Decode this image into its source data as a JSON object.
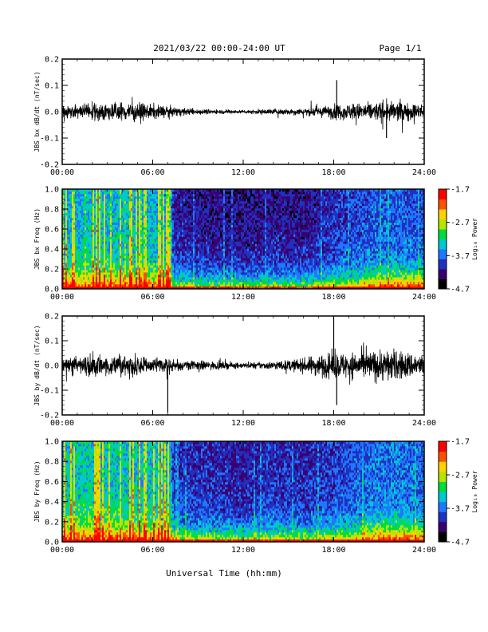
{
  "header": {
    "title": "2021/03/22  00:00-24:00 UT",
    "page": "Page 1/1"
  },
  "footer": {
    "xlabel": "Universal Time (hh:mm)"
  },
  "colors": {
    "trace": "#000000",
    "colormap": [
      "#000000",
      "#3a0070",
      "#2030c0",
      "#1e78ff",
      "#00c8d2",
      "#00dc3c",
      "#b4e600",
      "#ffd200",
      "#ff5000",
      "#ff0000"
    ]
  },
  "chart_data": [
    {
      "type": "line",
      "ylabel": "JBS bx dB/dt (nT/sec)",
      "x_range": [
        "00:00",
        "24:00"
      ],
      "x_ticks": [
        "00:00",
        "06:00",
        "12:00",
        "18:00",
        "24:00"
      ],
      "ylim": [
        -0.2,
        0.2
      ],
      "y_ticks": [
        "-0.2",
        "-0.1",
        "0.0",
        "0.1",
        "0.2"
      ],
      "envelope": {
        "hours": [
          0,
          2,
          3,
          4,
          5,
          6,
          8,
          10,
          12,
          14,
          16,
          17.5,
          18,
          20,
          22,
          24
        ],
        "amplitude": [
          0.04,
          0.06,
          0.05,
          0.07,
          0.06,
          0.05,
          0.025,
          0.015,
          0.012,
          0.02,
          0.025,
          0.04,
          0.05,
          0.06,
          0.07,
          0.05
        ]
      },
      "spikes": [
        {
          "hour": 18.2,
          "value": 0.12
        },
        {
          "hour": 21.5,
          "value": -0.1
        }
      ]
    },
    {
      "type": "heatmap",
      "ylabel": "JBS bx Freq (Hz)",
      "x_range": [
        "00:00",
        "24:00"
      ],
      "x_ticks": [
        "00:00",
        "06:00",
        "12:00",
        "18:00",
        "24:00"
      ],
      "ylim": [
        0.0,
        1.0
      ],
      "y_ticks": [
        "0.0",
        "0.2",
        "0.4",
        "0.6",
        "0.8",
        "1.0"
      ],
      "colorbar": {
        "label": "Log₁₀ Power",
        "range": [
          -4.7,
          -1.7
        ],
        "ticks": [
          "-1.7",
          "-2.7",
          "-3.7",
          "-4.7"
        ]
      },
      "activity": {
        "hours": [
          0,
          2,
          4,
          6,
          7.2,
          7.4,
          10,
          12,
          14,
          16,
          18,
          20,
          22,
          24
        ],
        "level": [
          0.72,
          0.78,
          0.75,
          0.72,
          0.7,
          0.35,
          0.3,
          0.28,
          0.32,
          0.3,
          0.4,
          0.5,
          0.55,
          0.5
        ]
      }
    },
    {
      "type": "line",
      "ylabel": "JBS by dB/dt (nT/sec)",
      "x_range": [
        "00:00",
        "24:00"
      ],
      "x_ticks": [
        "00:00",
        "06:00",
        "12:00",
        "18:00",
        "24:00"
      ],
      "ylim": [
        -0.2,
        0.2
      ],
      "y_ticks": [
        "-0.2",
        "-0.1",
        "0.0",
        "0.1",
        "0.2"
      ],
      "envelope": {
        "hours": [
          0,
          2,
          3,
          4,
          5,
          6,
          8,
          10,
          12,
          14,
          16,
          17,
          18,
          20,
          21.5,
          24
        ],
        "amplitude": [
          0.06,
          0.08,
          0.07,
          0.09,
          0.08,
          0.06,
          0.04,
          0.03,
          0.02,
          0.03,
          0.05,
          0.08,
          0.09,
          0.1,
          0.12,
          0.08
        ]
      },
      "spikes": [
        {
          "hour": 7.0,
          "value": -0.19
        },
        {
          "hour": 18.0,
          "value": 0.2
        },
        {
          "hour": 18.2,
          "value": -0.16
        }
      ]
    },
    {
      "type": "heatmap",
      "ylabel": "JBS by Freq (Hz)",
      "x_range": [
        "00:00",
        "24:00"
      ],
      "x_ticks": [
        "00:00",
        "06:00",
        "12:00",
        "18:00",
        "24:00"
      ],
      "ylim": [
        0.0,
        1.0
      ],
      "y_ticks": [
        "0.0",
        "0.2",
        "0.4",
        "0.6",
        "0.8",
        "1.0"
      ],
      "colorbar": {
        "label": "Log₁₀ Power",
        "range": [
          -4.7,
          -1.7
        ],
        "ticks": [
          "-1.7",
          "-2.7",
          "-3.7",
          "-4.7"
        ]
      },
      "activity": {
        "hours": [
          0,
          2,
          4,
          6,
          7.2,
          7.4,
          10,
          12,
          14,
          16,
          18,
          20,
          22,
          24
        ],
        "level": [
          0.78,
          0.82,
          0.8,
          0.78,
          0.75,
          0.42,
          0.38,
          0.35,
          0.4,
          0.38,
          0.45,
          0.55,
          0.6,
          0.55
        ]
      }
    }
  ]
}
